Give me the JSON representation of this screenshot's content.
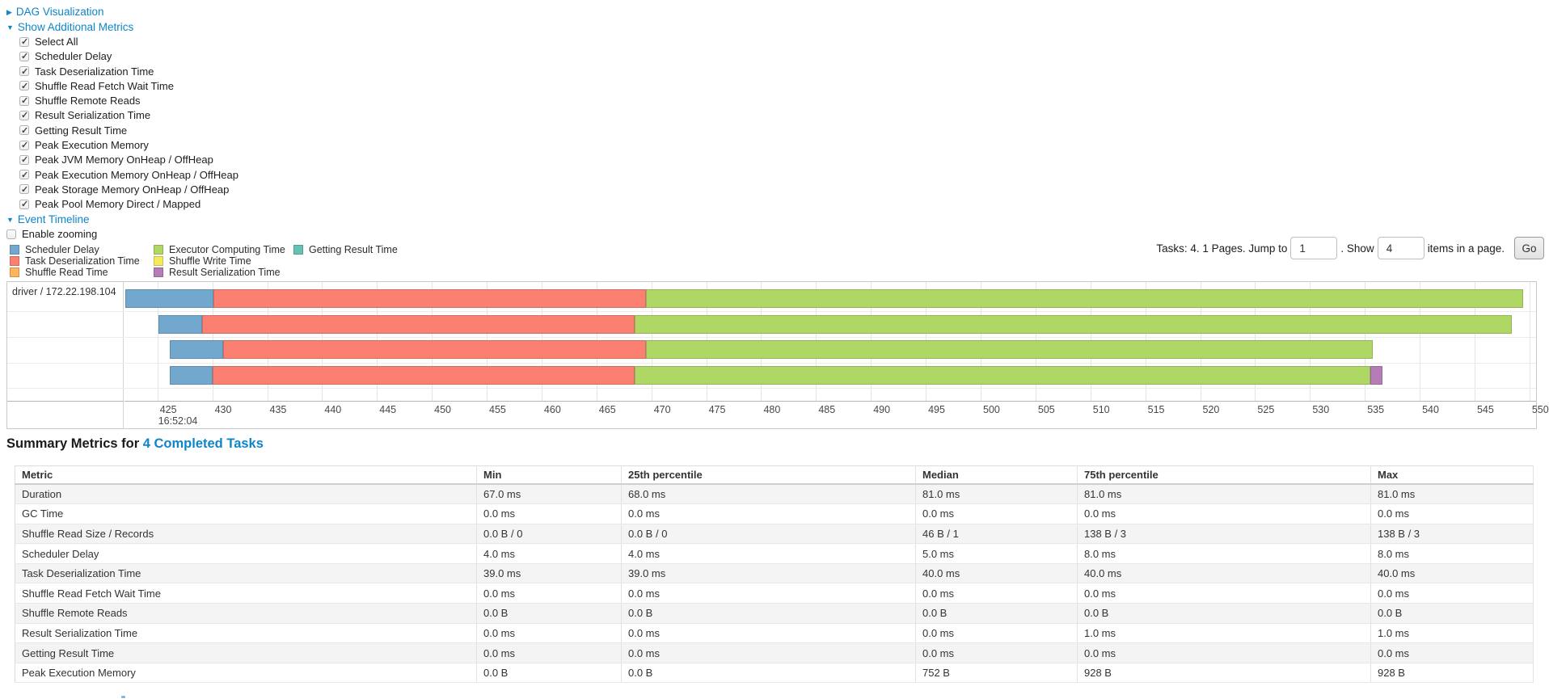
{
  "colors": {
    "link": "#0e85c9",
    "scheduler_delay": "#72A8CE",
    "task_deserialization": "#FB8072",
    "shuffle_read": "#FDB45C",
    "executor_computing": "#AED765",
    "shuffle_write": "#F5E95E",
    "result_serialization": "#B57CB8",
    "getting_result": "#65C2B3"
  },
  "toggles": {
    "dag_visualization": "DAG Visualization",
    "show_additional_metrics": "Show Additional Metrics",
    "event_timeline": "Event Timeline",
    "enable_zooming": "Enable zooming"
  },
  "metric_checkboxes": [
    "Select All",
    "Scheduler Delay",
    "Task Deserialization Time",
    "Shuffle Read Fetch Wait Time",
    "Shuffle Remote Reads",
    "Result Serialization Time",
    "Getting Result Time",
    "Peak Execution Memory",
    "Peak JVM Memory OnHeap / OffHeap",
    "Peak Execution Memory OnHeap / OffHeap",
    "Peak Storage Memory OnHeap / OffHeap",
    "Peak Pool Memory Direct / Mapped"
  ],
  "legend": {
    "columns": [
      [
        {
          "label": "Scheduler Delay",
          "key": "scheduler_delay"
        },
        {
          "label": "Task Deserialization Time",
          "key": "task_deserialization"
        },
        {
          "label": "Shuffle Read Time",
          "key": "shuffle_read"
        }
      ],
      [
        {
          "label": "Executor Computing Time",
          "key": "executor_computing"
        },
        {
          "label": "Shuffle Write Time",
          "key": "shuffle_write"
        },
        {
          "label": "Result Serialization Time",
          "key": "result_serialization"
        }
      ],
      [
        {
          "label": "Getting Result Time",
          "key": "getting_result"
        }
      ]
    ]
  },
  "pagination": {
    "summary_text": "Tasks: 4. 1 Pages. Jump to",
    "jump_value": "1",
    "show_text": ". Show",
    "show_value": "4",
    "items_text": "items in a page.",
    "go_label": "Go"
  },
  "chart_data": {
    "type": "timeline",
    "group_label": "driver / 172.22.198.104",
    "x_axis": {
      "range": [
        422.0,
        550.6
      ],
      "tick_start": 425,
      "tick_end": 550,
      "tick_step": 5,
      "time_of_day_label": "16:52:04"
    },
    "tasks": [
      {
        "start": 422.1,
        "segments": [
          [
            "scheduler_delay",
            8.0
          ],
          [
            "task_deserialization",
            39.4
          ],
          [
            "executor_computing",
            79.9
          ]
        ]
      },
      {
        "start": 425.1,
        "segments": [
          [
            "scheduler_delay",
            4.0
          ],
          [
            "task_deserialization",
            39.4
          ],
          [
            "executor_computing",
            79.9
          ]
        ]
      },
      {
        "start": 426.1,
        "segments": [
          [
            "scheduler_delay",
            4.9
          ],
          [
            "task_deserialization",
            38.5
          ],
          [
            "executor_computing",
            66.2
          ]
        ]
      },
      {
        "start": 426.1,
        "segments": [
          [
            "scheduler_delay",
            3.9
          ],
          [
            "task_deserialization",
            38.5
          ],
          [
            "executor_computing",
            67.0
          ],
          [
            "result_serialization",
            1.1
          ]
        ]
      }
    ]
  },
  "summary": {
    "title_prefix": "Summary Metrics for ",
    "title_link": "4 Completed Tasks",
    "table": {
      "headers": [
        "Metric",
        "Min",
        "25th percentile",
        "Median",
        "75th percentile",
        "Max"
      ],
      "rows": [
        [
          "Duration",
          "67.0 ms",
          "68.0 ms",
          "81.0 ms",
          "81.0 ms",
          "81.0 ms"
        ],
        [
          "GC Time",
          "0.0 ms",
          "0.0 ms",
          "0.0 ms",
          "0.0 ms",
          "0.0 ms"
        ],
        [
          "Shuffle Read Size / Records",
          "0.0 B / 0",
          "0.0 B / 0",
          "46 B / 1",
          "138 B / 3",
          "138 B / 3"
        ],
        [
          "Scheduler Delay",
          "4.0 ms",
          "4.0 ms",
          "5.0 ms",
          "8.0 ms",
          "8.0 ms"
        ],
        [
          "Task Deserialization Time",
          "39.0 ms",
          "39.0 ms",
          "40.0 ms",
          "40.0 ms",
          "40.0 ms"
        ],
        [
          "Shuffle Read Fetch Wait Time",
          "0.0 ms",
          "0.0 ms",
          "0.0 ms",
          "0.0 ms",
          "0.0 ms"
        ],
        [
          "Shuffle Remote Reads",
          "0.0 B",
          "0.0 B",
          "0.0 B",
          "0.0 B",
          "0.0 B"
        ],
        [
          "Result Serialization Time",
          "0.0 ms",
          "0.0 ms",
          "0.0 ms",
          "1.0 ms",
          "1.0 ms"
        ],
        [
          "Getting Result Time",
          "0.0 ms",
          "0.0 ms",
          "0.0 ms",
          "0.0 ms",
          "0.0 ms"
        ],
        [
          "Peak Execution Memory",
          "0.0 B",
          "0.0 B",
          "752 B",
          "928 B",
          "928 B"
        ]
      ]
    }
  }
}
